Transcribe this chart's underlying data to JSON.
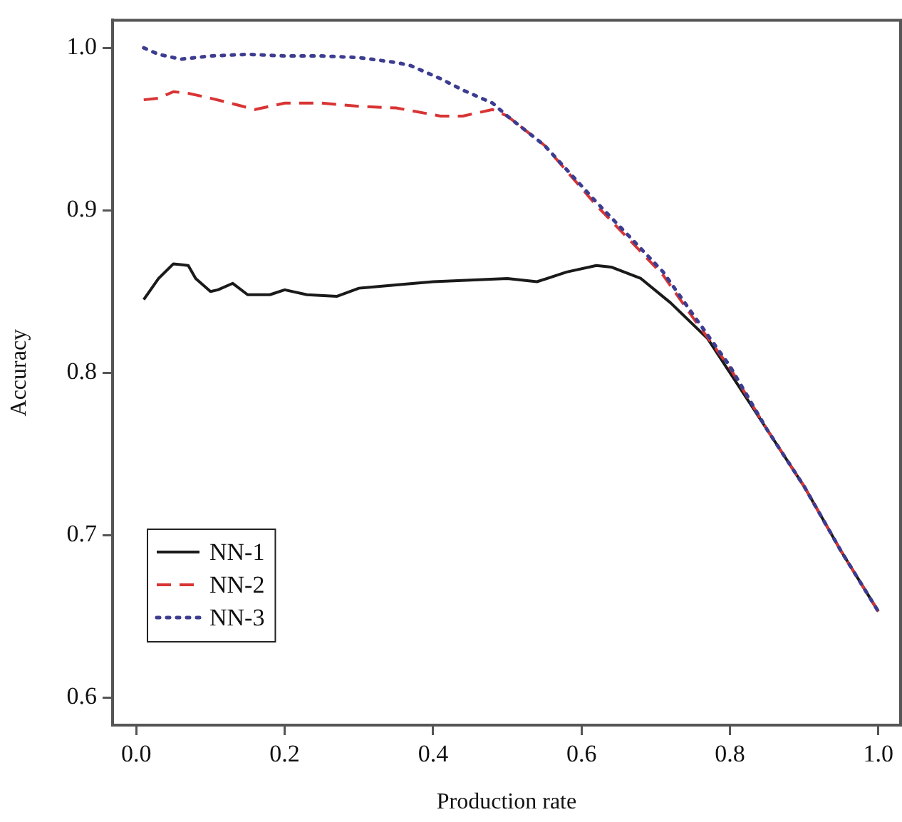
{
  "chart_data": {
    "type": "line",
    "xlabel": "Production rate",
    "ylabel": "Accuracy",
    "xlim": [
      -0.032,
      1.03
    ],
    "ylim": [
      0.583,
      1.017
    ],
    "xticks": [
      {
        "value": 0,
        "label": "0.0"
      },
      0.2,
      0.4,
      0.6,
      0.8,
      {
        "value": 1,
        "label": "1.0"
      }
    ],
    "yticks": [
      0.6,
      0.7,
      0.8,
      0.9,
      {
        "value": 1,
        "label": "1.0"
      }
    ],
    "grid": false,
    "legend": "bottom left",
    "marker": "none",
    "series": [
      {
        "name": "NN-1",
        "color": "#1a1a1a",
        "line_style": "solid",
        "x": [
          0.01,
          0.03,
          0.05,
          0.07,
          0.08,
          0.1,
          0.11,
          0.13,
          0.15,
          0.18,
          0.2,
          0.23,
          0.27,
          0.3,
          0.35,
          0.4,
          0.45,
          0.5,
          0.54,
          0.58,
          0.62,
          0.64,
          0.68,
          0.72,
          0.77,
          0.8,
          0.85,
          0.9,
          0.95,
          1.0
        ],
        "values": [
          0.845,
          0.858,
          0.867,
          0.866,
          0.858,
          0.85,
          0.851,
          0.855,
          0.848,
          0.848,
          0.851,
          0.848,
          0.847,
          0.852,
          0.854,
          0.856,
          0.857,
          0.858,
          0.856,
          0.862,
          0.866,
          0.865,
          0.858,
          0.843,
          0.821,
          0.8,
          0.765,
          0.73,
          0.69,
          0.653
        ]
      },
      {
        "name": "NN-2",
        "color": "#d93434",
        "line_style": "dashed",
        "x": [
          0.01,
          0.03,
          0.05,
          0.07,
          0.1,
          0.135,
          0.16,
          0.2,
          0.25,
          0.3,
          0.35,
          0.41,
          0.44,
          0.48,
          0.5,
          0.55,
          0.62,
          0.66,
          0.71,
          0.75,
          0.8,
          0.85,
          0.9,
          0.95,
          1.0
        ],
        "values": [
          0.968,
          0.969,
          0.973,
          0.972,
          0.969,
          0.965,
          0.962,
          0.966,
          0.966,
          0.964,
          0.963,
          0.958,
          0.958,
          0.962,
          0.958,
          0.94,
          0.903,
          0.884,
          0.86,
          0.834,
          0.803,
          0.765,
          0.73,
          0.69,
          0.653
        ]
      },
      {
        "name": "NN-3",
        "color": "#3c3c90",
        "line_style": "dotted",
        "x": [
          0.01,
          0.03,
          0.06,
          0.1,
          0.15,
          0.2,
          0.25,
          0.3,
          0.35,
          0.37,
          0.41,
          0.44,
          0.48,
          0.5,
          0.55,
          0.62,
          0.66,
          0.71,
          0.75,
          0.8,
          0.85,
          0.9,
          0.95,
          1.0
        ],
        "values": [
          1.0,
          0.996,
          0.993,
          0.995,
          0.996,
          0.995,
          0.995,
          0.994,
          0.991,
          0.989,
          0.981,
          0.974,
          0.966,
          0.958,
          0.94,
          0.905,
          0.886,
          0.862,
          0.836,
          0.804,
          0.765,
          0.73,
          0.69,
          0.653
        ]
      }
    ]
  }
}
